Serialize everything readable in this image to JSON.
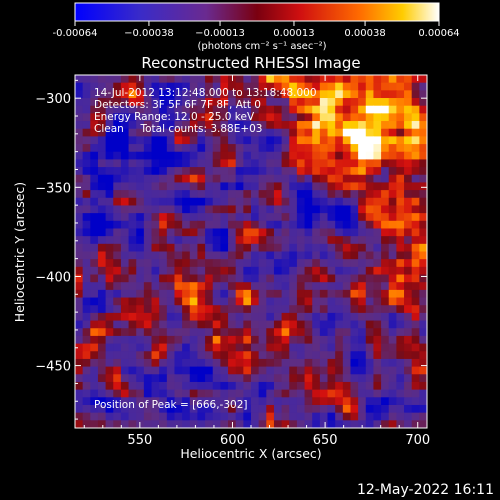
{
  "chart_data": {
    "type": "heatmap",
    "title": "Reconstructed RHESSI Image",
    "xlabel": "Heliocentric X (arcsec)",
    "ylabel": "Heliocentric Y (arcsec)",
    "xlim": [
      515,
      705
    ],
    "ylim": [
      -485,
      -287
    ],
    "x_ticks": [
      550,
      600,
      650,
      700
    ],
    "y_ticks": [
      -300,
      -350,
      -400,
      -450
    ],
    "x_tick_labels": [
      "550",
      "600",
      "650",
      "700"
    ],
    "y_tick_labels": [
      "−300",
      "−350",
      "−400",
      "−450"
    ],
    "colorbar": {
      "range": [
        -0.00064,
        0.00064
      ],
      "tick_values": [
        -0.00064,
        -0.00038,
        -0.00013,
        0.00013,
        0.00038,
        0.00064
      ],
      "tick_labels": [
        "-0.00064",
        "−0.00038",
        "−0.00013",
        "0.00013",
        "0.00038",
        "0.00064"
      ],
      "unit_label": "(photons cm⁻² s⁻¹ asec⁻²)",
      "colors": [
        "#0000cc",
        "#5a2aa0",
        "#8a1020",
        "#d01010",
        "#ff6a00",
        "#ffcc00",
        "#ffffff"
      ]
    },
    "annotations": {
      "time_range": "14-Jul-2012 13:12:48.000 to 13:18:48.000",
      "detectors": "Detectors: 3F 5F 6F 7F 8F, Att 0",
      "energy_range": "Energy Range: 12.0 - 25.0 keV",
      "algorithm": "Clean     Total counts: 3.88E+03",
      "peak_position": "Position of Peak = [666,-302]"
    },
    "peak": [
      666,
      -302
    ],
    "grid": false
  },
  "footer": {
    "timestamp": "12-May-2022 16:11"
  }
}
